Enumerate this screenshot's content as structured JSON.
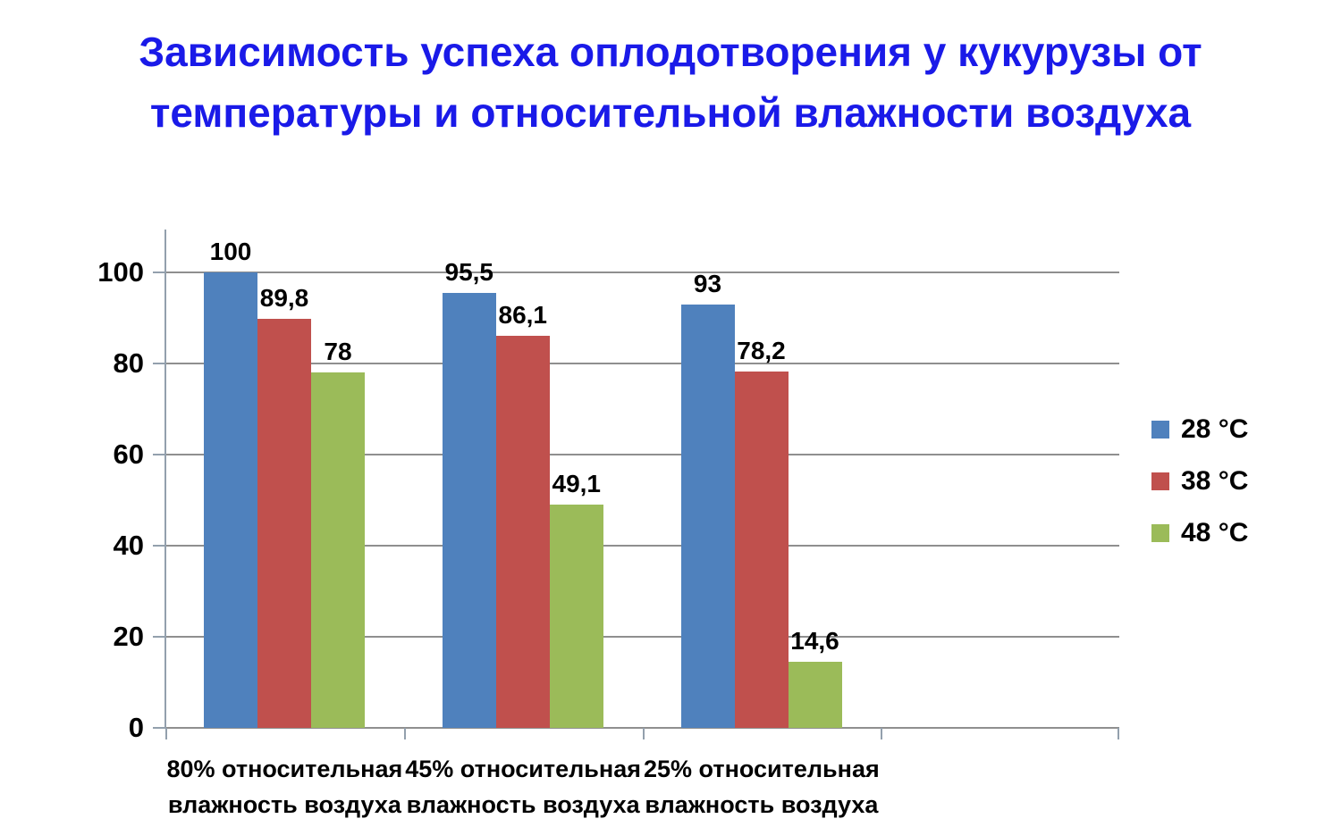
{
  "title": {
    "text": "Зависимость успеха оплодотворения у кукурузы от температуры и относительной влажности воздуха",
    "line1": "Зависимость успеха оплодотворения у кукурузы от",
    "line2": "температуры и относительной влажности воздуха",
    "color": "#1a1ae8"
  },
  "chart_data": {
    "type": "bar",
    "title": "Зависимость успеха оплодотворения у кукурузы от температуры и относительной влажности воздуха",
    "categories": [
      "80% относительная влажность воздуха",
      "45% относительная влажность воздуха",
      "25% относительная влажность воздуха"
    ],
    "category_label_lines": [
      [
        "80% относительная",
        "влажность воздуха"
      ],
      [
        "45% относительная",
        "влажность воздуха"
      ],
      [
        "25% относительная",
        "влажность воздуха"
      ]
    ],
    "series": [
      {
        "name": "28 °C",
        "color": "#4F81BD",
        "values": [
          100,
          95.5,
          93
        ],
        "labels": [
          "100",
          "95,5",
          "93"
        ]
      },
      {
        "name": "38 °C",
        "color": "#C0504D",
        "values": [
          89.8,
          86.1,
          78.2
        ],
        "labels": [
          "89,8",
          "86,1",
          "78,2"
        ]
      },
      {
        "name": "48 °C",
        "color": "#9BBB59",
        "values": [
          78,
          49.1,
          14.6
        ],
        "labels": [
          "78",
          "49,1",
          "14,6"
        ]
      }
    ],
    "y_ticks": [
      0,
      20,
      40,
      60,
      80,
      100
    ],
    "y_tick_labels": [
      "0",
      "20",
      "40",
      "60",
      "80",
      "100"
    ],
    "ylim": [
      0,
      100
    ],
    "grid": true,
    "legend_position": "right",
    "value_label_decimal_separator": "comma",
    "empty_trailing_category_slots": 1
  }
}
